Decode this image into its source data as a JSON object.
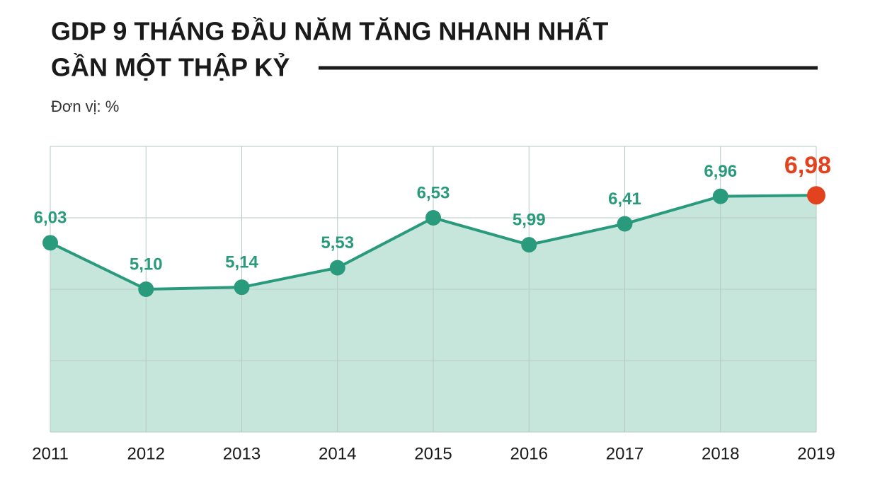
{
  "chart_data": {
    "type": "area",
    "title": [
      "GDP 9 THÁNG ĐẦU NĂM TĂNG NHANH NHẤT",
      "GẦN MỘT THẬP KỶ"
    ],
    "subtitle": "Đơn vị: %",
    "categories": [
      "2011",
      "2012",
      "2013",
      "2014",
      "2015",
      "2016",
      "2017",
      "2018",
      "2019"
    ],
    "values": [
      6.03,
      5.1,
      5.14,
      5.53,
      6.53,
      5.99,
      6.41,
      6.96,
      6.98
    ],
    "value_labels": [
      "6,03",
      "5,10",
      "5,14",
      "5,53",
      "6,53",
      "5,99",
      "6,41",
      "6,96",
      "6,98"
    ],
    "color": "#2a9a7d",
    "area_color": "#c6e6dc",
    "marker_colors": [
      "#2a9a7d",
      "#2a9a7d",
      "#2a9a7d",
      "#2a9a7d",
      "#2a9a7d",
      "#2a9a7d",
      "#2a9a7d",
      "#2a9a7d",
      "#e2431e"
    ],
    "ylim": [
      2.24,
      7.96
    ],
    "yticks": [
      2.24,
      3.67,
      5.1,
      6.53,
      7.96
    ],
    "grid": true
  }
}
